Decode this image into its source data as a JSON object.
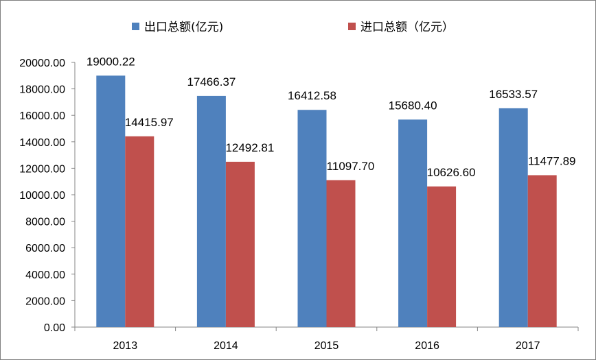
{
  "chart_data": {
    "type": "bar",
    "categories": [
      "2013",
      "2014",
      "2015",
      "2016",
      "2017"
    ],
    "series": [
      {
        "name": "出口总额(亿元)",
        "values": [
          19000.22,
          17466.37,
          16412.58,
          15680.4,
          16533.57
        ],
        "color": "#4f81bd"
      },
      {
        "name": "进口总额（亿元）",
        "values": [
          14415.97,
          12492.81,
          11097.7,
          10626.6,
          11477.89
        ],
        "color": "#c0504d"
      }
    ],
    "data_labels": [
      [
        "19000.22",
        "17466.37",
        "16412.58",
        "15680.40",
        "16533.57"
      ],
      [
        "14415.97",
        "12492.81",
        "11097.70",
        "10626.60",
        "11477.89"
      ]
    ],
    "ylim": [
      0,
      20000
    ],
    "yticks": [
      "0.00",
      "2000.00",
      "4000.00",
      "6000.00",
      "8000.00",
      "10000.00",
      "12000.00",
      "14000.00",
      "16000.00",
      "18000.00",
      "20000.00"
    ],
    "legend_position": "top",
    "grid": false,
    "title": "",
    "xlabel": "",
    "ylabel": ""
  }
}
